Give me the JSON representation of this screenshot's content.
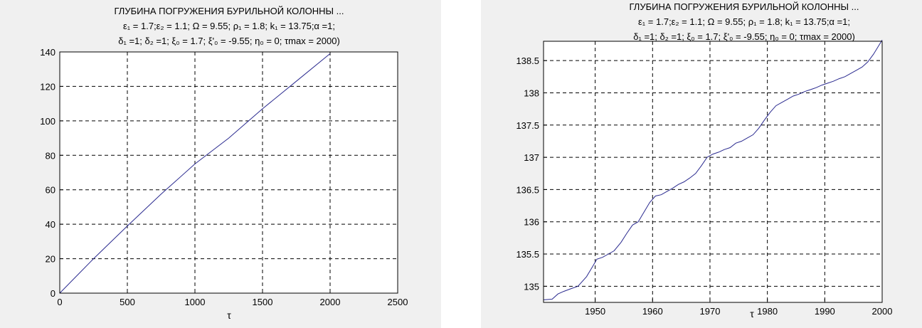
{
  "colors": {
    "series": "#2a2a8f",
    "background": "#f0f0f0",
    "plot_bg": "#ffffff"
  },
  "chart_data": [
    {
      "type": "line",
      "title": "ГЛУБИНА ПОГРУЖЕНИЯ БУРИЛЬНОЙ КОЛОННЫ ...",
      "subtitle_line1": "ε₁ = 1.7;ε₂ = 1.1; Ω = 9.55;  ρ₁ = 1.8;  k₁ =  13.75;α =1;",
      "subtitle_line2": "δ₁ =1; δ₂ =1; ξ₀ = 1.7; ξ'₀ = -9.55; η₀ = 0;  τmax = 2000)",
      "xlabel": "τ",
      "ylabel": "",
      "xlim": [
        0,
        2500
      ],
      "ylim": [
        0,
        140
      ],
      "xticks": [
        0,
        500,
        1000,
        1500,
        2000,
        2500
      ],
      "yticks": [
        0,
        20,
        40,
        60,
        80,
        100,
        120,
        140
      ],
      "grid": true,
      "series": [
        {
          "x": [
            0,
            250,
            500,
            750,
            1000,
            1250,
            1500,
            1750,
            2000
          ],
          "y": [
            0,
            20,
            39,
            57.5,
            75,
            90,
            107,
            123,
            139
          ]
        }
      ]
    },
    {
      "type": "line",
      "title": "ГЛУБИНА ПОГРУЖЕНИЯ БУРИЛЬНОЙ КОЛОННЫ ...",
      "subtitle_line1": "ε₁ = 1.7;ε₂ = 1.1; Ω = 9.55;  ρ₁ = 1.8;  k₁ =  13.75;α =1;",
      "subtitle_line2": "δ₁ =1; δ₂ =1; ξ₀ = 1.7; ξ'₀ = -9.55; η₀ = 0;  τmax = 2000)",
      "xlabel": "τ",
      "ylabel": "",
      "xlim": [
        1941,
        2000
      ],
      "ylim": [
        134.75,
        138.8
      ],
      "xticks": [
        1950,
        1960,
        1970,
        1980,
        1990,
        2000
      ],
      "yticks": [
        135,
        135.5,
        136,
        136.5,
        137,
        137.5,
        138,
        138.5
      ],
      "grid": true,
      "series": [
        {
          "x": [
            1941,
            1942.5,
            1943.5,
            1944.5,
            1946,
            1947,
            1948.5,
            1949.5,
            1950.3,
            1951.3,
            1952.3,
            1953.3,
            1954.5,
            1955.5,
            1956.5,
            1957.5,
            1958.5,
            1959.5,
            1960.5,
            1961.5,
            1962.5,
            1963.5,
            1964.5,
            1965.5,
            1966.5,
            1967.5,
            1968.5,
            1969.5,
            1970.5,
            1971.5,
            1972.5,
            1973.5,
            1974.5,
            1975.5,
            1976.5,
            1977.5,
            1978.5,
            1979.5,
            1980.5,
            1981.5,
            1982.5,
            1983.5,
            1984.5,
            1985.5,
            1986.5,
            1987.5,
            1988.5,
            1989.5,
            1990.5,
            1991.5,
            1992.5,
            1993.5,
            1994.5,
            1995.5,
            1996.5,
            1997.5,
            1998.5,
            2000
          ],
          "y": [
            134.79,
            134.8,
            134.88,
            134.92,
            134.97,
            135.0,
            135.15,
            135.3,
            135.42,
            135.45,
            135.5,
            135.55,
            135.68,
            135.82,
            135.95,
            136.0,
            136.15,
            136.3,
            136.4,
            136.42,
            136.47,
            136.52,
            136.58,
            136.62,
            136.68,
            136.75,
            136.87,
            137.0,
            137.05,
            137.08,
            137.12,
            137.15,
            137.22,
            137.25,
            137.3,
            137.35,
            137.45,
            137.58,
            137.7,
            137.8,
            137.85,
            137.9,
            137.95,
            137.98,
            138.02,
            138.05,
            138.08,
            138.12,
            138.15,
            138.18,
            138.22,
            138.25,
            138.3,
            138.35,
            138.4,
            138.48,
            138.6,
            138.82
          ]
        }
      ]
    }
  ]
}
